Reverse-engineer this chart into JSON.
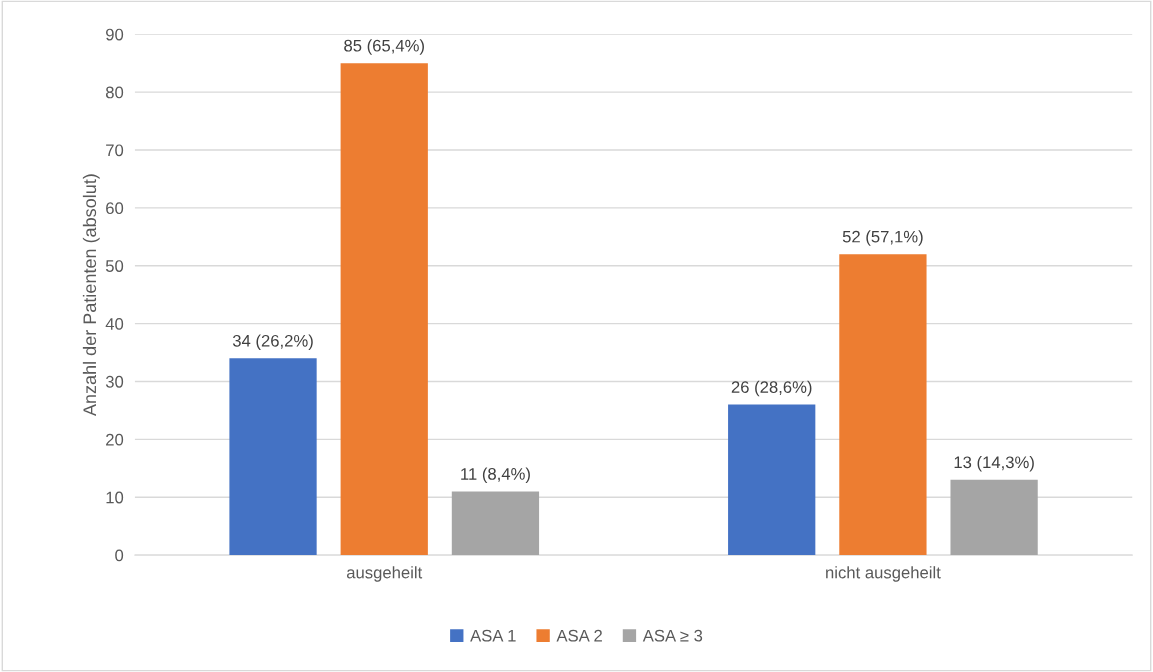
{
  "chart_data": {
    "type": "bar",
    "ylabel": "Anzahl der Patienten (absolut)",
    "categories": [
      "ausgeheilt",
      "nicht ausgeheilt"
    ],
    "series": [
      {
        "name": "ASA 1",
        "color": "#4472c4",
        "values": [
          34,
          26
        ],
        "value_labels": [
          "34 (26,2%)",
          "26 (28,6%)"
        ]
      },
      {
        "name": "ASA 2",
        "color": "#ed7d31",
        "values": [
          85,
          52
        ],
        "value_labels": [
          "85 (65,4%)",
          "52 (57,1%)"
        ]
      },
      {
        "name": "ASA ≥ 3",
        "color": "#a5a5a5",
        "values": [
          11,
          13
        ],
        "value_labels": [
          "11 (8,4%)",
          "13 (14,3%)"
        ]
      }
    ],
    "ylim": [
      0,
      90
    ],
    "yticks": [
      0,
      10,
      20,
      30,
      40,
      50,
      60,
      70,
      80,
      90
    ],
    "grid": "y",
    "legend": "bottom"
  }
}
